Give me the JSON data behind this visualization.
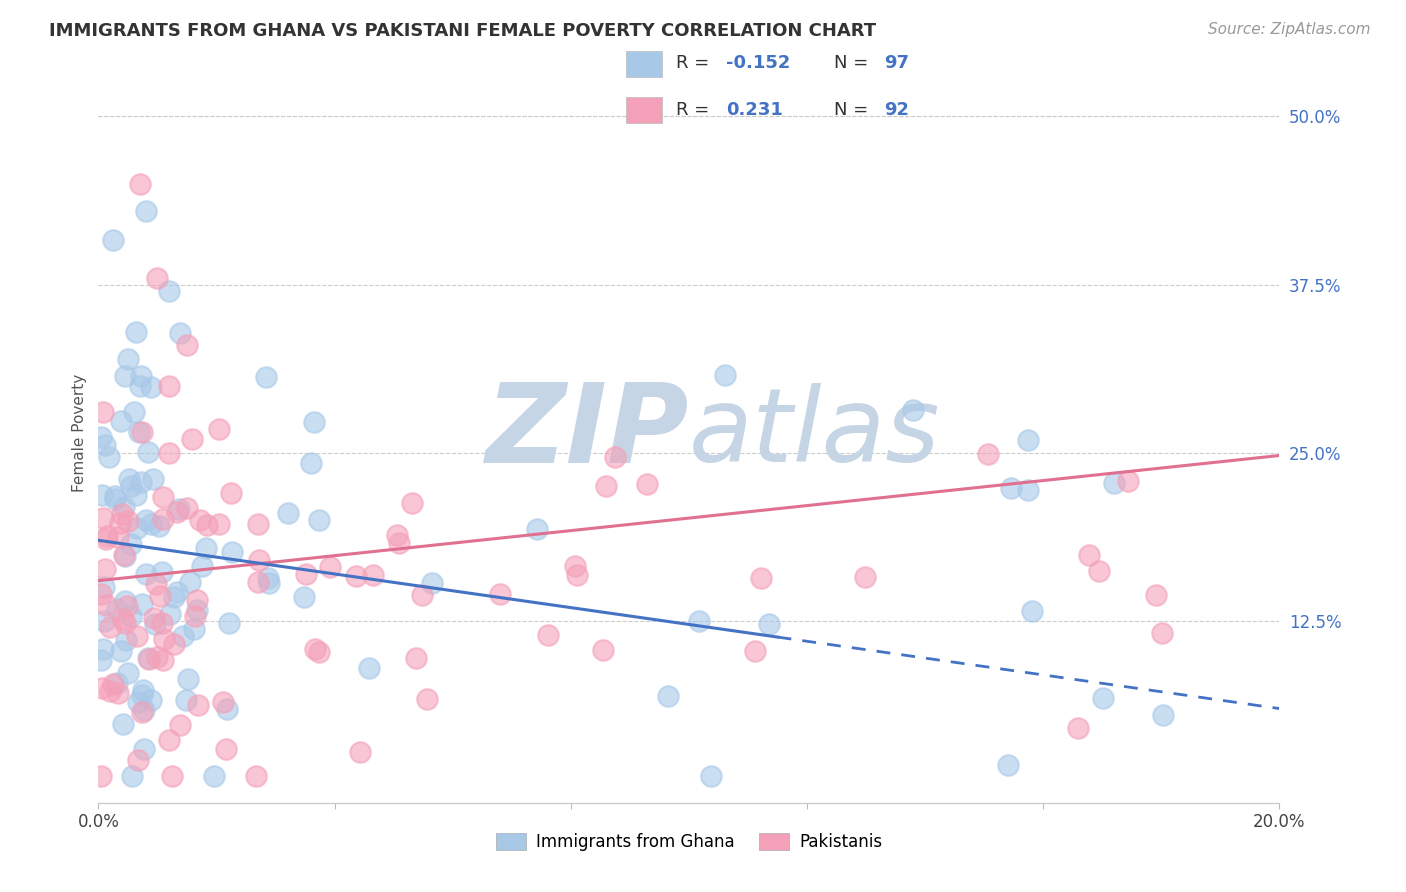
{
  "title": "IMMIGRANTS FROM GHANA VS PAKISTANI FEMALE POVERTY CORRELATION CHART",
  "source": "Source: ZipAtlas.com",
  "ylabel": "Female Poverty",
  "xlim": [
    0.0,
    0.2
  ],
  "ylim": [
    -0.01,
    0.54
  ],
  "ytick_positions": [
    0.125,
    0.25,
    0.375,
    0.5
  ],
  "ytick_labels": [
    "12.5%",
    "25.0%",
    "37.5%",
    "50.0%"
  ],
  "ghana_R": -0.152,
  "ghana_N": 97,
  "pak_R": 0.231,
  "pak_N": 92,
  "ghana_color": "#a8c8e8",
  "pak_color": "#f4a0b8",
  "ghana_line_color": "#4472c4",
  "pak_line_color": "#e07090",
  "watermark_zip": "ZIP",
  "watermark_atlas": "atlas",
  "watermark_color": "#c8d8e8",
  "legend_ghana_label": "Immigrants from Ghana",
  "legend_pak_label": "Pakistanis",
  "title_fontsize": 13,
  "source_fontsize": 11
}
